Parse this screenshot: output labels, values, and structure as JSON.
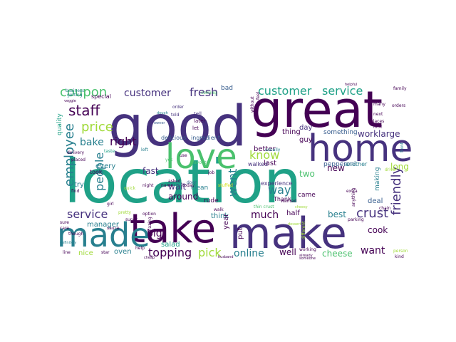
{
  "palette": {
    "dark_purple": "#440154",
    "indigo": "#46327e",
    "blue": "#365c8d",
    "teal": "#277f8e",
    "sea_green": "#1fa187",
    "green": "#4ac16d",
    "lime": "#a0da39",
    "yellow": "#d5e21a"
  },
  "words": [
    {
      "text": "good",
      "color": "indigo"
    },
    {
      "text": "great",
      "color": "dark_purple"
    },
    {
      "text": "location",
      "color": "sea_green"
    },
    {
      "text": "make",
      "color": "indigo"
    },
    {
      "text": "take",
      "color": "dark_purple"
    },
    {
      "text": "home",
      "color": "indigo"
    },
    {
      "text": "love",
      "color": "green"
    },
    {
      "text": "made",
      "color": "teal"
    },
    {
      "text": "coupon",
      "color": "green"
    },
    {
      "text": "staff",
      "color": "dark_purple"
    },
    {
      "text": "price",
      "color": "lime"
    },
    {
      "text": "customer",
      "color": "indigo"
    },
    {
      "text": "fresh",
      "color": "indigo"
    },
    {
      "text": "customer",
      "color": "sea_green"
    },
    {
      "text": "service",
      "color": "sea_green"
    },
    {
      "text": "right",
      "color": "dark_purple"
    },
    {
      "text": "know",
      "color": "lime"
    },
    {
      "text": "friendly",
      "color": "indigo"
    },
    {
      "text": "employee",
      "color": "teal"
    },
    {
      "text": "people",
      "color": "teal"
    },
    {
      "text": "bake",
      "color": "teal"
    },
    {
      "text": "service",
      "color": "indigo"
    },
    {
      "text": "topping",
      "color": "dark_purple"
    },
    {
      "text": "pick",
      "color": "lime"
    },
    {
      "text": "online",
      "color": "teal"
    },
    {
      "text": "crust",
      "color": "indigo"
    },
    {
      "text": "want",
      "color": "dark_purple"
    },
    {
      "text": "cheese",
      "color": "green"
    },
    {
      "text": "way",
      "color": "teal"
    },
    {
      "text": "went",
      "color": "teal"
    },
    {
      "text": "much",
      "color": "dark_purple"
    },
    {
      "text": "best",
      "color": "teal"
    },
    {
      "text": "cook",
      "color": "dark_purple"
    },
    {
      "text": "around",
      "color": "dark_purple"
    },
    {
      "text": "wait",
      "color": "indigo"
    },
    {
      "text": "fast",
      "color": "indigo"
    },
    {
      "text": "well",
      "color": "dark_purple"
    },
    {
      "text": "big",
      "color": "dark_purple"
    },
    {
      "text": "new",
      "color": "dark_purple"
    },
    {
      "text": "half",
      "color": "dark_purple"
    },
    {
      "text": "deal",
      "color": "blue"
    },
    {
      "text": "two",
      "color": "green"
    },
    {
      "text": "long",
      "color": "lime"
    },
    {
      "text": "last",
      "color": "dark_purple"
    },
    {
      "text": "came",
      "color": "dark_purple"
    },
    {
      "text": "salad",
      "color": "sea_green"
    },
    {
      "text": "think",
      "color": "teal"
    },
    {
      "text": "manager",
      "color": "teal"
    },
    {
      "text": "every",
      "color": "teal"
    },
    {
      "text": "try",
      "color": "teal"
    },
    {
      "text": "nice",
      "color": "lime"
    },
    {
      "text": "oven",
      "color": "teal"
    },
    {
      "text": "worklarge",
      "color": "indigo"
    },
    {
      "text": "something",
      "color": "blue"
    },
    {
      "text": "thing",
      "color": "dark_purple"
    },
    {
      "text": "guy",
      "color": "dark_purple"
    },
    {
      "text": "day",
      "color": "indigo"
    },
    {
      "text": "better",
      "color": "dark_purple"
    },
    {
      "text": "delicious",
      "color": "blue"
    },
    {
      "text": "ingredient",
      "color": "blue"
    },
    {
      "text": "walked",
      "color": "indigo"
    },
    {
      "text": "pepperoni",
      "color": "blue"
    },
    {
      "text": "another",
      "color": "teal"
    },
    {
      "text": "quality",
      "color": "sea_green"
    },
    {
      "text": "special",
      "color": "dark_purple"
    },
    {
      "text": "bad",
      "color": "blue"
    },
    {
      "text": "year",
      "color": "dark_purple"
    },
    {
      "text": "put",
      "color": "dark_purple"
    },
    {
      "text": "experience",
      "color": "indigo"
    },
    {
      "text": "Thank",
      "color": "dark_purple"
    },
    {
      "text": "making",
      "color": "teal"
    },
    {
      "text": "clean",
      "color": "teal"
    },
    {
      "text": "rude",
      "color": "dark_purple"
    },
    {
      "text": "took",
      "color": "dark_purple"
    },
    {
      "text": "getting",
      "color": "teal"
    },
    {
      "text": "business",
      "color": "teal"
    },
    {
      "text": "coming",
      "color": "green"
    },
    {
      "text": "tell",
      "color": "indigo"
    },
    {
      "text": "later",
      "color": "dark_purple"
    },
    {
      "text": "let",
      "color": "dark_purple"
    },
    {
      "text": "order",
      "color": "indigo"
    },
    {
      "text": "told",
      "color": "indigo"
    },
    {
      "text": "veggie",
      "color": "dark_purple"
    },
    {
      "text": "dough",
      "color": "teal"
    },
    {
      "text": "owner",
      "color": "blue"
    },
    {
      "text": "without",
      "color": "dark_purple"
    },
    {
      "text": "feel",
      "color": "dark_purple"
    },
    {
      "text": "family",
      "color": "dark_purple"
    },
    {
      "text": "orders",
      "color": "dark_purple"
    },
    {
      "text": "next",
      "color": "dark_purple"
    },
    {
      "text": "places",
      "color": "dark_purple"
    },
    {
      "text": "many",
      "color": "dark_purple"
    },
    {
      "text": "front",
      "color": "teal"
    },
    {
      "text": "delivery",
      "color": "dark_purple"
    },
    {
      "text": "placed",
      "color": "dark_purple"
    },
    {
      "text": "taste",
      "color": "sea_green"
    },
    {
      "text": "left",
      "color": "teal"
    },
    {
      "text": "usually",
      "color": "teal"
    },
    {
      "text": "stuffed",
      "color": "yellow"
    },
    {
      "text": "favorite",
      "color": "green"
    },
    {
      "text": "job",
      "color": "dark_purple"
    },
    {
      "text": "door",
      "color": "blue"
    },
    {
      "text": "name",
      "color": "dark_purple"
    },
    {
      "text": "today",
      "color": "dark_purple"
    },
    {
      "text": "use",
      "color": "dark_purple"
    },
    {
      "text": "night",
      "color": "dark_purple"
    },
    {
      "text": "option",
      "color": "dark_purple"
    },
    {
      "text": "walk",
      "color": "dark_purple"
    },
    {
      "text": "find",
      "color": "dark_purple"
    },
    {
      "text": "girl",
      "color": "dark_purple"
    },
    {
      "text": "pretty",
      "color": "lime"
    },
    {
      "text": "super",
      "color": "dark_purple"
    },
    {
      "text": "sauce",
      "color": "dark_purple"
    },
    {
      "text": "though",
      "color": "dark_purple"
    },
    {
      "text": "line",
      "color": "dark_purple"
    },
    {
      "text": "star",
      "color": "dark_purple"
    },
    {
      "text": "help",
      "color": "dark_purple"
    },
    {
      "text": "cheap",
      "color": "dark_purple"
    },
    {
      "text": "husband",
      "color": "dark_purple"
    },
    {
      "text": "working",
      "color": "dark_purple"
    },
    {
      "text": "different",
      "color": "lime"
    },
    {
      "text": "wanted",
      "color": "dark_purple"
    },
    {
      "text": "extra",
      "color": "dark_purple"
    },
    {
      "text": "parking",
      "color": "dark_purple"
    },
    {
      "text": "chain",
      "color": "dark_purple"
    },
    {
      "text": "kind",
      "color": "dark_purple"
    },
    {
      "text": "person",
      "color": "lime"
    },
    {
      "text": "drive",
      "color": "lime"
    },
    {
      "text": "already",
      "color": "dark_purple"
    },
    {
      "text": "someone",
      "color": "dark_purple"
    },
    {
      "text": "definitely",
      "color": "teal"
    },
    {
      "text": "sure",
      "color": "dark_purple"
    },
    {
      "text": "care",
      "color": "dark_purple"
    },
    {
      "text": "yes",
      "color": "green"
    },
    {
      "text": "quick",
      "color": "lime"
    },
    {
      "text": "amazing",
      "color": "dark_purple"
    },
    {
      "text": "asked",
      "color": "dark_purple"
    },
    {
      "text": "thin crust",
      "color": "green"
    },
    {
      "text": "cheesy",
      "color": "lime"
    },
    {
      "text": "dessert",
      "color": "lime"
    },
    {
      "text": "anything",
      "color": "dark_purple"
    },
    {
      "text": "helpful",
      "color": "dark_purple"
    },
    {
      "text": "look",
      "color": "dark_purple"
    }
  ]
}
